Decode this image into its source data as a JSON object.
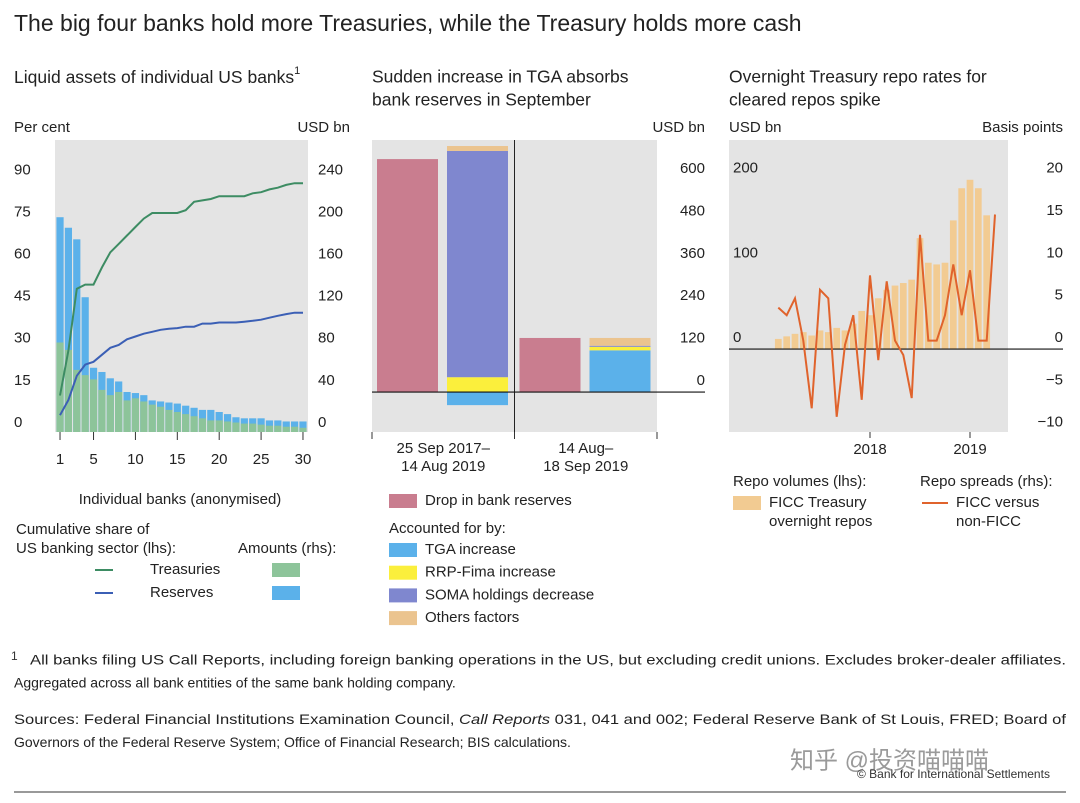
{
  "title": "The big four banks hold more Treasuries, while the Treasury holds more cash",
  "chart_data": [
    {
      "type": "combo",
      "title": "Liquid assets of individual US banks",
      "title_note": "1",
      "ylabel": "Per cent",
      "y2label": "USD bn",
      "xlabel": "Individual banks (anonymised)",
      "x": [
        1,
        2,
        3,
        4,
        5,
        6,
        7,
        8,
        9,
        10,
        11,
        12,
        13,
        14,
        15,
        16,
        17,
        18,
        19,
        20,
        21,
        22,
        23,
        24,
        25,
        26,
        27,
        28,
        29,
        30
      ],
      "xlim": [
        0.4,
        30.6
      ],
      "xticks": [
        1,
        5,
        10,
        15,
        20,
        25,
        30
      ],
      "ylim": [
        0,
        104
      ],
      "yticks": [
        0,
        15,
        30,
        45,
        60,
        75,
        90
      ],
      "y2lim": [
        0,
        277.33
      ],
      "y2ticks": [
        0,
        40,
        80,
        120,
        160,
        200,
        240
      ],
      "line_heading": [
        "Cumulative share of",
        "US banking sector (lhs):"
      ],
      "bar_heading": "Amounts (rhs):",
      "series": [
        {
          "name": "Treasuries",
          "line_color": "#3d8c63",
          "bar_color": "#8dc49a",
          "share": [
            13,
            29,
            51,
            52.5,
            52.5,
            58.6,
            64,
            67,
            70,
            73,
            76,
            78,
            78,
            78,
            78,
            79,
            82,
            82.5,
            83,
            84,
            84,
            84,
            84,
            85,
            85.4,
            86.4,
            87,
            88,
            88.6,
            88.6
          ],
          "amounts": [
            85,
            78,
            59,
            54,
            50,
            40,
            35,
            38,
            30,
            32,
            29,
            26,
            24,
            21,
            19,
            17,
            15,
            13,
            11,
            11,
            10,
            9,
            8,
            8,
            7,
            6,
            6,
            5,
            5,
            4
          ]
        },
        {
          "name": "Reserves",
          "line_color": "#3b5fb5",
          "bar_color": "#5bb1ea",
          "share": [
            6,
            11.4,
            20,
            24,
            25,
            27.5,
            30,
            31,
            33,
            34,
            35,
            35.7,
            36.4,
            36.8,
            37,
            37.5,
            37.5,
            38.6,
            38.6,
            39,
            39,
            39,
            39.3,
            39.6,
            40,
            40.7,
            41.4,
            42,
            42.5,
            42.5
          ],
          "amounts": [
            204,
            194,
            183,
            128,
            61,
            57,
            51,
            48,
            38,
            37,
            35,
            30,
            29,
            28,
            27,
            25,
            23,
            21,
            21,
            19,
            17,
            14,
            13,
            13,
            13,
            11,
            11,
            10,
            10,
            10
          ]
        }
      ]
    },
    {
      "type": "bar",
      "title": [
        "Sudden increase in TGA absorbs",
        "bank reserves in September"
      ],
      "ylabel": "USD bn",
      "categories": [
        [
          "25 Sep 2017–",
          "14 Aug 2019"
        ],
        [
          "14 Aug–",
          "18 Sep 2019"
        ]
      ],
      "ylim": [
        -113,
        713
      ],
      "yticks": [
        0,
        120,
        240,
        360,
        480,
        600
      ],
      "bars": {
        "name": "Drop in bank reserves",
        "color": "#c97d8f",
        "values": [
          659,
          153
        ]
      },
      "stack_label": "Accounted for by:",
      "stack": [
        {
          "name": "TGA increase",
          "color": "#5bb1ea",
          "values": [
            -37,
            118
          ]
        },
        {
          "name": "RRP-Fima increase",
          "color": "#fbef3c",
          "values": [
            42,
            10
          ]
        },
        {
          "name": "SOMA holdings decrease",
          "color": "#7f87cf",
          "values": [
            640,
            3
          ]
        },
        {
          "name": "Others factors",
          "color": "#ebc48f",
          "values": [
            14,
            22
          ]
        }
      ]
    },
    {
      "type": "dual",
      "title": [
        "Overnight Treasury repo rates for",
        "cleared repos spike"
      ],
      "ylabel": "USD bn",
      "y2label": "Basis points",
      "x": [
        2017.583,
        2017.667,
        2017.75,
        2017.833,
        2017.917,
        2018,
        2018.083,
        2018.167,
        2018.25,
        2018.333,
        2018.417,
        2018.5,
        2018.583,
        2018.667,
        2018.75,
        2018.833,
        2018.917,
        2019,
        2019.083,
        2019.167,
        2019.25,
        2019.333,
        2019.417,
        2019.5,
        2019.583,
        2019.667,
        2019.75
      ],
      "xlim": [
        2017.09,
        2019.88
      ],
      "xticks": [
        {
          "value": 2018.5,
          "label": "2018"
        },
        {
          "value": 2019.5,
          "label": "2019"
        }
      ],
      "ylim": [
        -98,
        247
      ],
      "yticks": [
        0,
        100,
        200
      ],
      "y2lim": [
        -9.8,
        24.7
      ],
      "y2ticks": [
        {
          "value": -10,
          "label": "−10"
        },
        {
          "value": -5,
          "label": "−5"
        },
        0,
        5,
        10,
        15,
        20
      ],
      "series": [
        {
          "heading": "Repo volumes (lhs):",
          "name": [
            "FICC Treasury",
            "overnight repos"
          ],
          "kind": "bar",
          "color": "#f2cb92",
          "values": [
            12,
            15,
            18,
            20,
            16,
            22,
            20,
            25,
            22,
            30,
            45,
            40,
            60,
            70,
            75,
            78,
            82,
            131,
            102,
            100,
            102,
            152,
            190,
            200,
            190,
            158,
            null
          ]
        },
        {
          "heading": "Repo spreads (rhs):",
          "name": [
            "FICC versus",
            "non-FICC"
          ],
          "kind": "line",
          "axis": "y2",
          "color": "#e0632c",
          "values": [
            4.9,
            4,
            6,
            1,
            -7,
            7,
            6,
            -8,
            0.5,
            4,
            -6,
            8.7,
            -1.3,
            8,
            1,
            -0.7,
            -5.8,
            13.5,
            1,
            1,
            4,
            10,
            4,
            9.3,
            1,
            1,
            15.9
          ]
        }
      ]
    }
  ],
  "footnote": {
    "mark": "1",
    "lines": [
      "All banks filing US Call Reports, including foreign banking operations in the US, but excluding credit unions. Excludes broker-dealer affiliates.",
      "Aggregated across all bank entities of the same bank holding company."
    ]
  },
  "sources": [
    [
      "Sources: Federal Financial Institutions Examination Council, ",
      "Call Reports",
      " 031, 041 and 002; Federal Reserve Bank of St Louis, FRED; Board of"
    ],
    [
      "Governors of the Federal Reserve System; Office of Financial Research; BIS calculations."
    ]
  ],
  "watermark": "知乎 @投资喵喵喵",
  "copyright": "© Bank for International Settlements"
}
